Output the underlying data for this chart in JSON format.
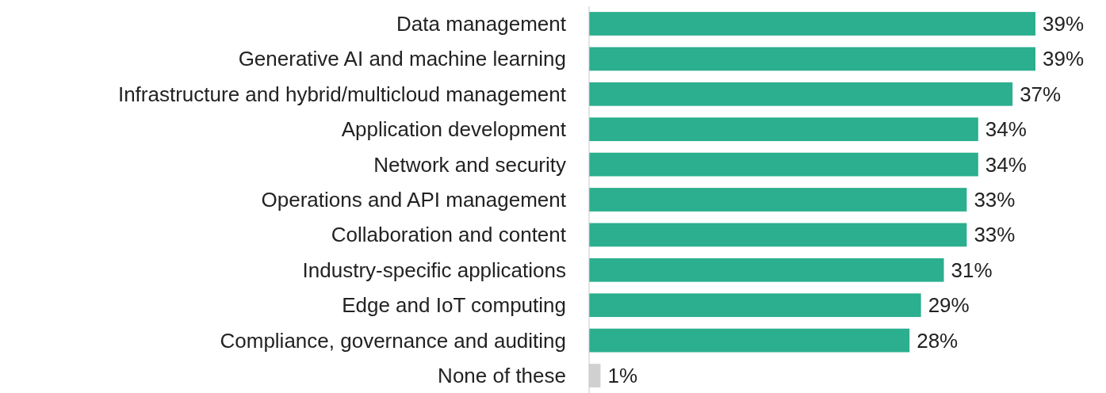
{
  "chart_data": {
    "type": "bar",
    "orientation": "horizontal",
    "categories": [
      "Data management",
      "Generative AI and machine learning",
      "Infrastructure and hybrid/multicloud management",
      "Application development",
      "Network and security",
      "Operations and API management",
      "Collaboration and content",
      "Industry-specific applications",
      "Edge and IoT computing",
      "Compliance, governance and auditing",
      "None of these"
    ],
    "values": [
      39,
      39,
      37,
      34,
      34,
      33,
      33,
      31,
      29,
      28,
      1
    ],
    "colors": [
      "#2baf8e",
      "#2baf8e",
      "#2baf8e",
      "#2baf8e",
      "#2baf8e",
      "#2baf8e",
      "#2baf8e",
      "#2baf8e",
      "#2baf8e",
      "#2baf8e",
      "#d0d0d0"
    ],
    "value_labels": [
      "39%",
      "39%",
      "37%",
      "34%",
      "34%",
      "33%",
      "33%",
      "31%",
      "29%",
      "28%",
      "1%"
    ]
  }
}
